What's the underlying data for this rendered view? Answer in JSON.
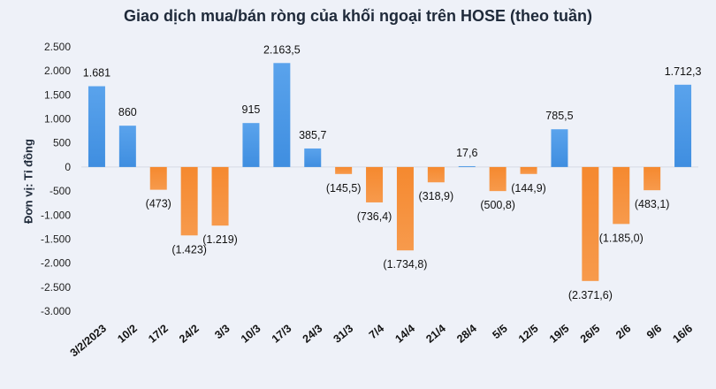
{
  "chart_data": {
    "type": "bar",
    "title": "Giao dịch mua/bán ròng của khối ngoại trên HOSE (theo tuần)",
    "ylabel": "Đơn vị: Tỉ đồng",
    "xlabel": "",
    "ylim": [
      -3000,
      2500
    ],
    "yticks": [
      2500,
      2000,
      1500,
      1000,
      500,
      0,
      -500,
      -1000,
      -1500,
      -2000,
      -2500,
      -3000
    ],
    "ytick_labels": [
      "2.500",
      "2.000",
      "1.500",
      "1.000",
      "500",
      "0",
      "-500",
      "-1.000",
      "-1.500",
      "-2.000",
      "-2.500",
      "-3.000"
    ],
    "grid": false,
    "legend": "none",
    "colors": {
      "positive": "#3f8ee0",
      "negative": "#f5892f"
    },
    "categories": [
      "3/2/2023",
      "10/2",
      "17/2",
      "24/2",
      "3/3",
      "10/3",
      "17/3",
      "24/3",
      "31/3",
      "7/4",
      "14/4",
      "21/4",
      "28/4",
      "5/5",
      "12/5",
      "19/5",
      "26/5",
      "2/6",
      "9/6",
      "16/6"
    ],
    "values": [
      1681,
      860,
      -473,
      -1423,
      -1219,
      915,
      2163.5,
      385.7,
      -145.5,
      -736.4,
      -1734.8,
      -318.9,
      17.6,
      -500.8,
      -144.9,
      785.5,
      -2371.6,
      -1185.0,
      -483.1,
      1712.3
    ],
    "data_labels": [
      "1.681",
      "860",
      "(473)",
      "(1.423)",
      "(1.219)",
      "915",
      "2.163,5",
      "385,7",
      "(145,5)",
      "(736,4)",
      "(1.734,8)",
      "(318,9)",
      "17,6",
      "(500,8)",
      "(144,9)",
      "785,5",
      "(2.371,6)",
      "(1.185,0)",
      "(483,1)",
      "1.712,3"
    ]
  }
}
